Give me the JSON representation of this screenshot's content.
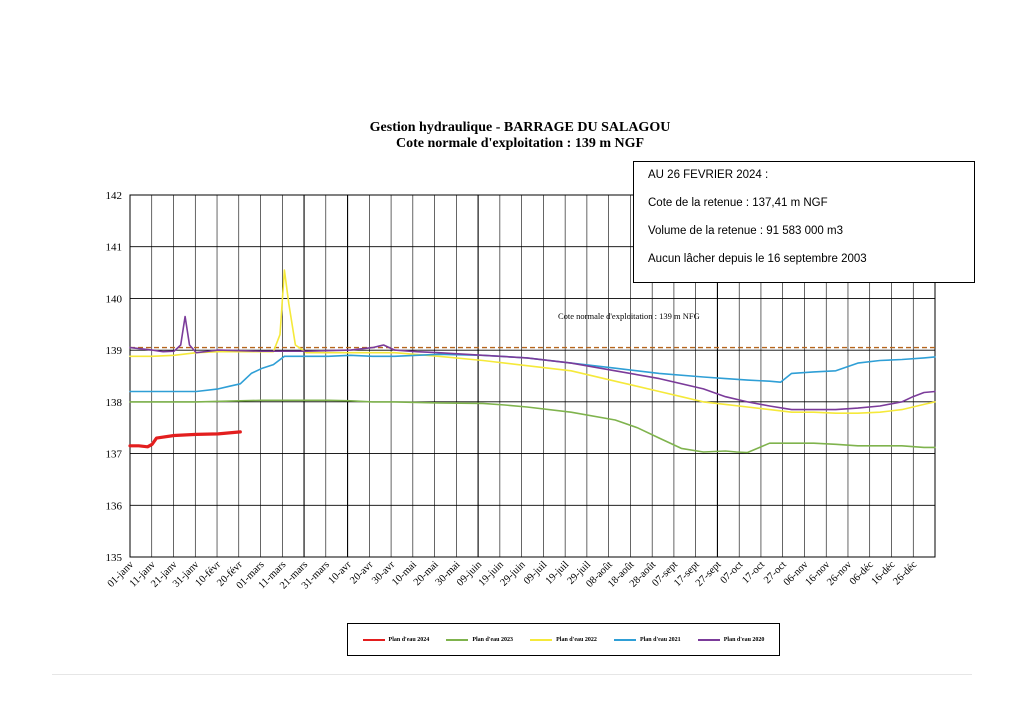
{
  "title_line1": "Gestion hydraulique - BARRAGE DU SALAGOU",
  "title_line2": "Cote normale d'exploitation : 139 m NGF",
  "infobox": {
    "line1": "AU 26 FEVRIER 2024 :",
    "line2": "Cote de la retenue : 137,41 m NGF",
    "line3": "Volume de la retenue : 91 583 000 m3",
    "line4": "Aucun lâcher depuis le 16 septembre 2003"
  },
  "colors": {
    "2024": "#e31e1e",
    "2023": "#7fb34d",
    "2022": "#f5e93a",
    "2021": "#2f9fd6",
    "2020": "#7b3b9a",
    "ref": "#b5651d"
  },
  "chart_data": {
    "type": "line",
    "ylim": [
      135,
      142
    ],
    "yticks": [
      135,
      136,
      137,
      138,
      139,
      140,
      141,
      142
    ],
    "x_range_days": [
      0,
      365
    ],
    "x_ticks": [
      "01-janv",
      "11-janv",
      "21-janv",
      "31-janv",
      "10-févr",
      "20-févr",
      "01-mars",
      "11-mars",
      "21-mars",
      "31-mars",
      "10-avr",
      "20-avr",
      "30-avr",
      "10-mai",
      "20-mai",
      "30-mai",
      "09-juin",
      "19-juin",
      "29-juin",
      "09-juil",
      "19-juil",
      "29-juil",
      "08-août",
      "18-août",
      "28-août",
      "07-sept",
      "17-sept",
      "27-sept",
      "07-oct",
      "17-oct",
      "27-oct",
      "06-nov",
      "16-nov",
      "26-nov",
      "06-déc",
      "16-déc",
      "26-déc"
    ],
    "reference_line": {
      "value": 139.05,
      "label": "Cote normale d'exploitation : 139 m NFG"
    },
    "series": [
      {
        "name": "Plan d'eau 2024",
        "color_key": "2024",
        "x": [
          0,
          4,
          8,
          10,
          12,
          20,
          30,
          40,
          45,
          50
        ],
        "y": [
          137.15,
          137.15,
          137.13,
          137.18,
          137.3,
          137.35,
          137.37,
          137.38,
          137.4,
          137.42
        ]
      },
      {
        "name": "Plan d'eau 2023",
        "color_key": "2023",
        "x": [
          0,
          30,
          60,
          90,
          100,
          110,
          120,
          140,
          160,
          170,
          180,
          200,
          220,
          230,
          240,
          250,
          260,
          270,
          275,
          280,
          290,
          300,
          310,
          320,
          330,
          340,
          350,
          360,
          365
        ],
        "y": [
          138.0,
          138.0,
          138.03,
          138.03,
          138.02,
          138.0,
          138.0,
          137.98,
          137.97,
          137.94,
          137.9,
          137.8,
          137.65,
          137.5,
          137.3,
          137.1,
          137.03,
          137.05,
          137.03,
          137.02,
          137.2,
          137.2,
          137.2,
          137.18,
          137.15,
          137.15,
          137.15,
          137.12,
          137.12
        ]
      },
      {
        "name": "Plan d'eau 2022",
        "color_key": "2022",
        "x": [
          0,
          10,
          20,
          30,
          40,
          50,
          60,
          65,
          68,
          70,
          72,
          75,
          80,
          90,
          110,
          120,
          140,
          160,
          180,
          200,
          220,
          230,
          240,
          250,
          260,
          270,
          280,
          290,
          300,
          310,
          320,
          330,
          340,
          350,
          360,
          365
        ],
        "y": [
          138.88,
          138.88,
          138.9,
          138.95,
          138.97,
          138.97,
          138.97,
          138.97,
          139.3,
          140.55,
          139.9,
          139.1,
          138.95,
          138.95,
          138.95,
          138.95,
          138.88,
          138.8,
          138.7,
          138.6,
          138.4,
          138.3,
          138.2,
          138.1,
          138.0,
          137.95,
          137.9,
          137.85,
          137.8,
          137.8,
          137.78,
          137.78,
          137.8,
          137.85,
          137.95,
          138.0
        ]
      },
      {
        "name": "Plan d'eau 2021",
        "color_key": "2021",
        "x": [
          0,
          10,
          20,
          30,
          40,
          45,
          50,
          55,
          60,
          65,
          70,
          80,
          90,
          100,
          110,
          120,
          130,
          140,
          160,
          180,
          200,
          220,
          240,
          260,
          270,
          280,
          290,
          295,
          300,
          310,
          320,
          330,
          340,
          350,
          360,
          365
        ],
        "y": [
          138.2,
          138.2,
          138.2,
          138.2,
          138.25,
          138.3,
          138.35,
          138.55,
          138.65,
          138.72,
          138.88,
          138.88,
          138.88,
          138.9,
          138.88,
          138.88,
          138.9,
          138.92,
          138.9,
          138.85,
          138.75,
          138.65,
          138.55,
          138.48,
          138.45,
          138.42,
          138.4,
          138.38,
          138.55,
          138.58,
          138.6,
          138.75,
          138.8,
          138.82,
          138.85,
          138.87
        ]
      },
      {
        "name": "Plan d'eau 2020",
        "color_key": "2020",
        "x": [
          0,
          10,
          15,
          20,
          23,
          25,
          27,
          30,
          40,
          60,
          80,
          100,
          110,
          115,
          120,
          130,
          140,
          160,
          180,
          200,
          220,
          240,
          260,
          270,
          280,
          290,
          300,
          310,
          320,
          330,
          340,
          350,
          355,
          360,
          365
        ],
        "y": [
          139.05,
          139.0,
          138.97,
          138.98,
          139.1,
          139.65,
          139.1,
          138.95,
          139.0,
          138.98,
          138.98,
          139.0,
          139.05,
          139.1,
          139.0,
          138.97,
          138.95,
          138.9,
          138.85,
          138.75,
          138.6,
          138.45,
          138.25,
          138.1,
          138.0,
          137.92,
          137.85,
          137.85,
          137.85,
          137.88,
          137.92,
          138.0,
          138.1,
          138.18,
          138.2
        ]
      }
    ]
  }
}
